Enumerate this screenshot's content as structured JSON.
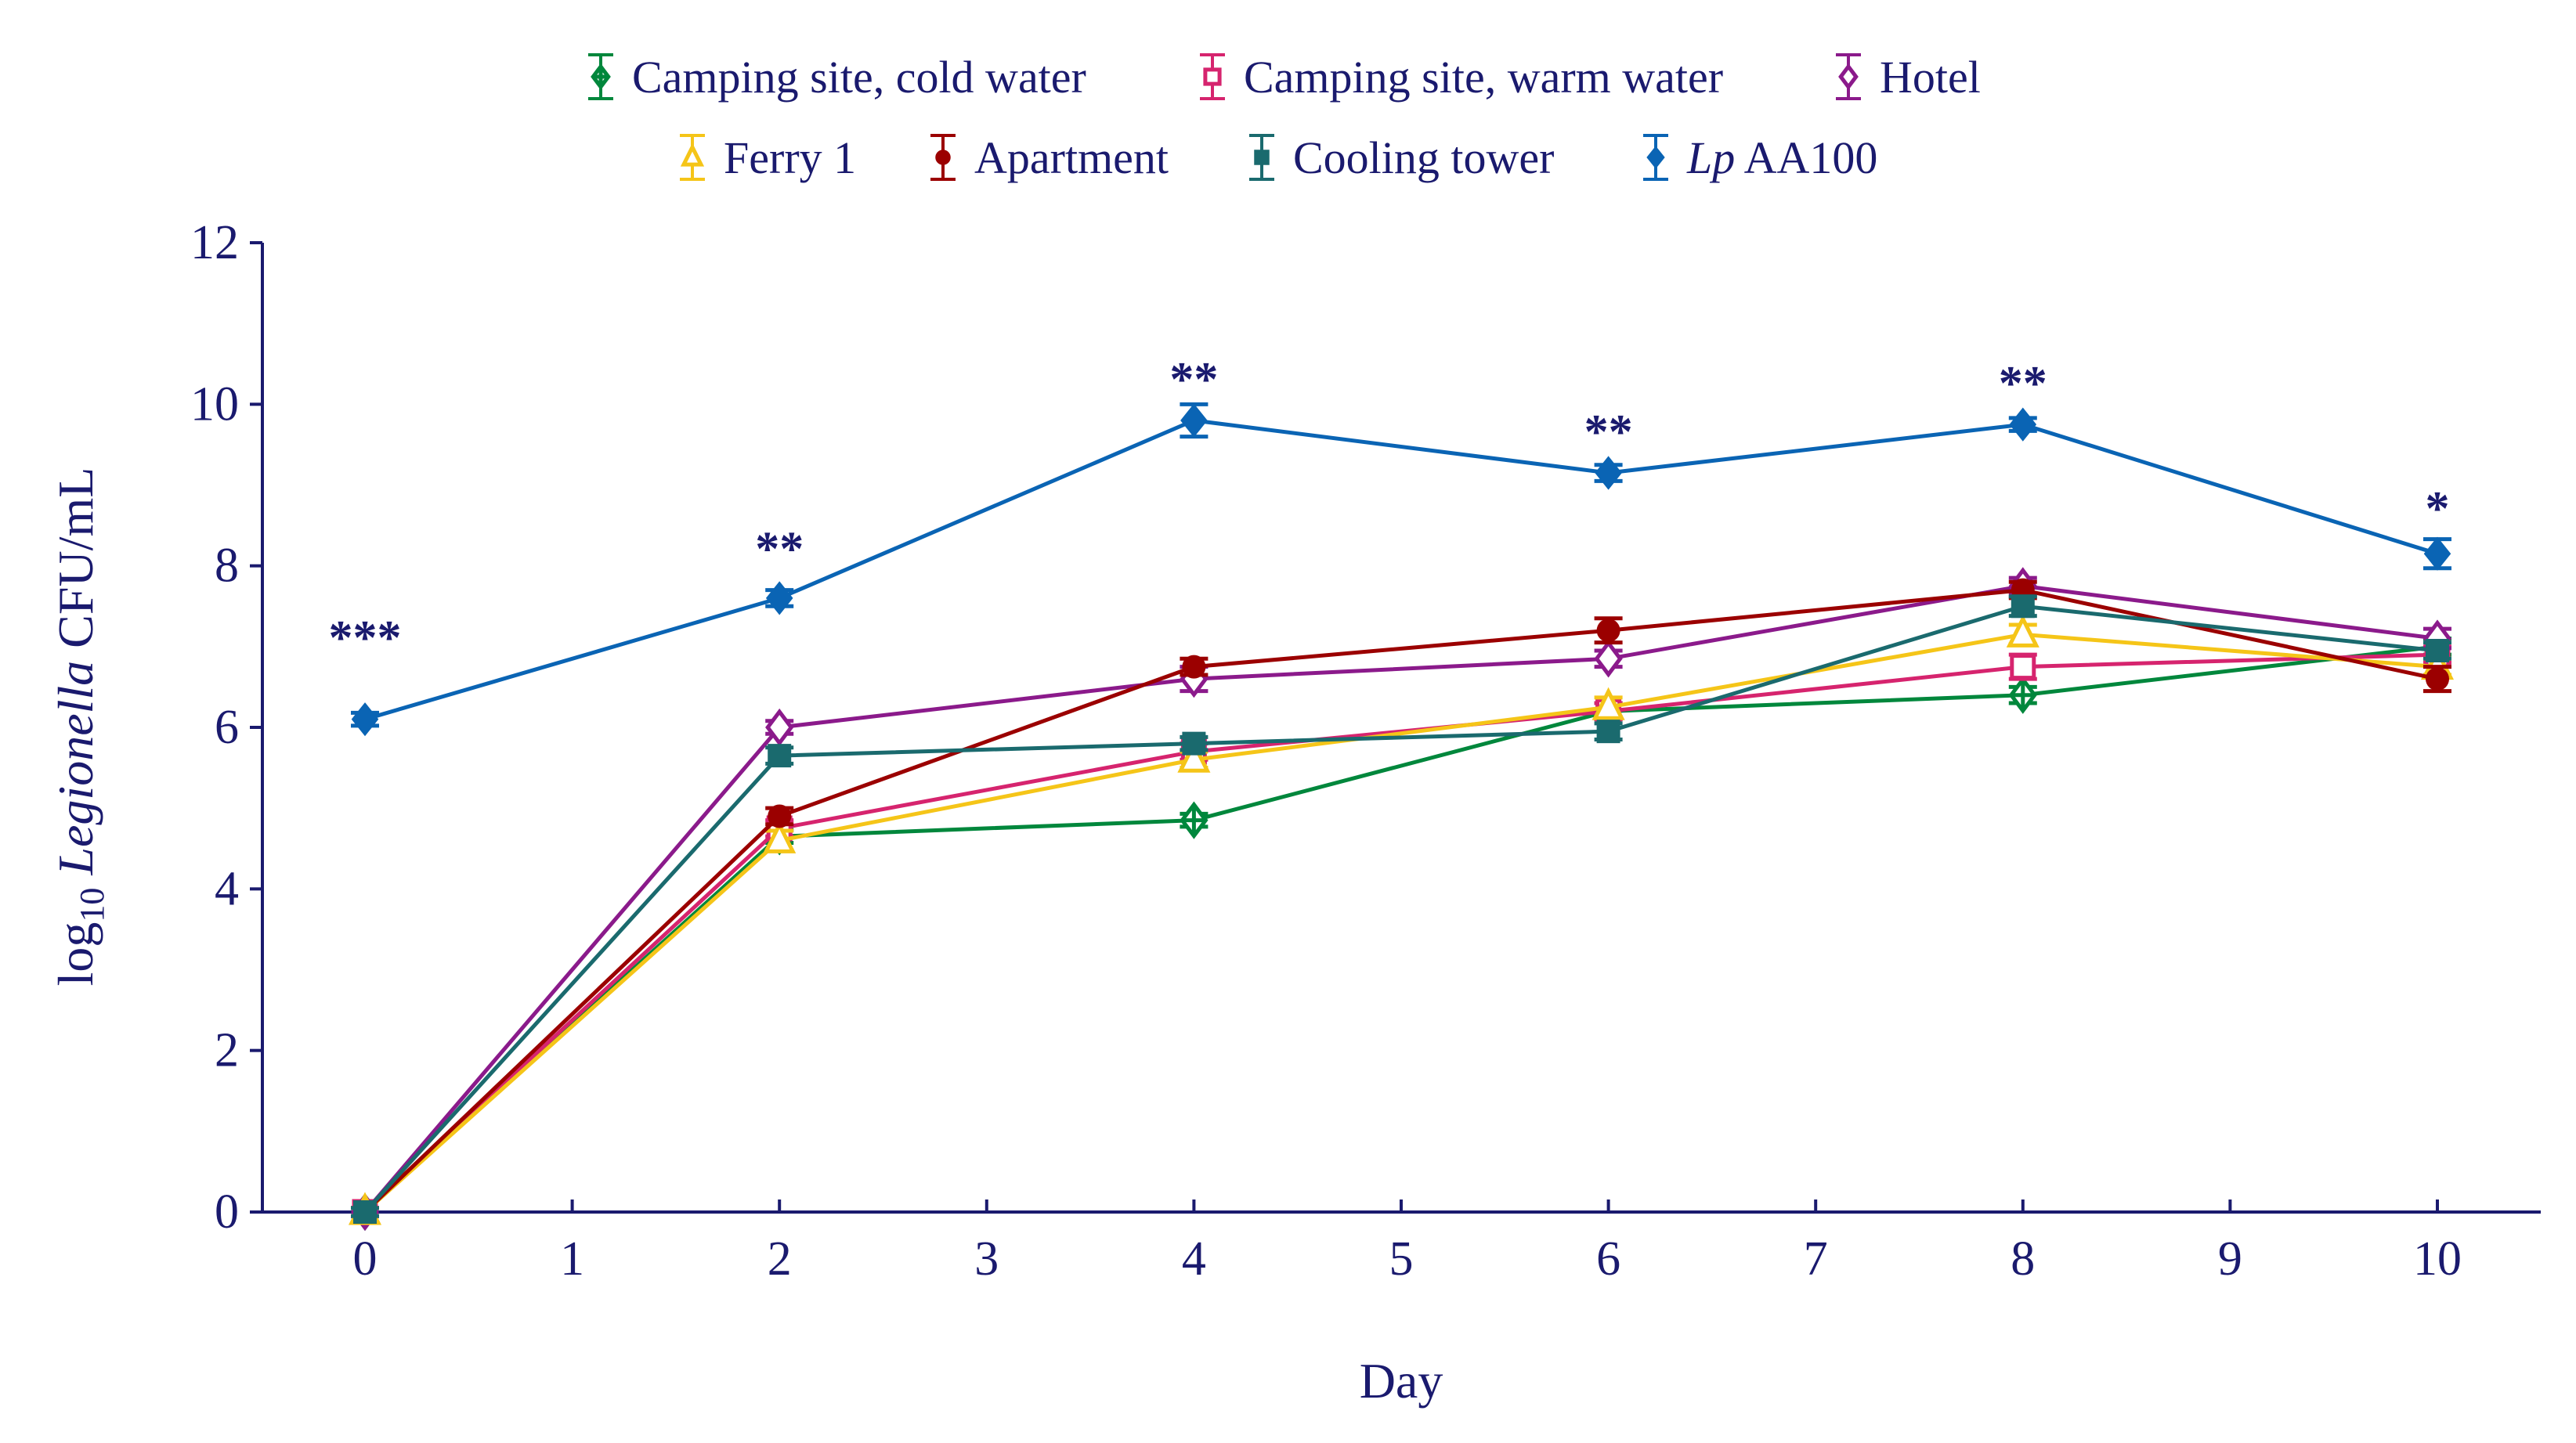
{
  "chart_data": {
    "type": "line",
    "xlabel": "Day",
    "ylabel": {
      "prefix": "log",
      "subscript": "10",
      "italic": "Legionella",
      "suffix": " CFU/mL"
    },
    "x": [
      0,
      2,
      4,
      6,
      8,
      10
    ],
    "xlim": [
      -0.5,
      10.5
    ],
    "ylim": [
      0,
      12
    ],
    "xticks": [
      "0",
      "1",
      "2",
      "3",
      "4",
      "5",
      "6",
      "7",
      "8",
      "9",
      "10"
    ],
    "yticks": [
      "0",
      "2",
      "4",
      "6",
      "8",
      "10",
      "12"
    ],
    "grid": false,
    "legend_position": "top",
    "series": [
      {
        "name": "Camping site, cold water",
        "color": "#00873c",
        "marker": "diamond-cross-open",
        "values": [
          0,
          4.65,
          4.85,
          6.2,
          6.4,
          7.0
        ],
        "err": [
          0.05,
          0.08,
          0.08,
          0.1,
          0.1,
          0.1
        ]
      },
      {
        "name": "Camping site, warm water",
        "color": "#d6246e",
        "marker": "square-open",
        "values": [
          0,
          4.75,
          5.7,
          6.2,
          6.75,
          6.9
        ],
        "err": [
          0.05,
          0.1,
          0.1,
          0.1,
          0.15,
          0.1
        ]
      },
      {
        "name": "Hotel",
        "color": "#8b1a8b",
        "marker": "diamond-open",
        "values": [
          0,
          6.0,
          6.6,
          6.85,
          7.75,
          7.1
        ],
        "err": [
          0.05,
          0.08,
          0.15,
          0.1,
          0.1,
          0.12
        ]
      },
      {
        "name": "Ferry 1",
        "color": "#f5c518",
        "marker": "triangle-open",
        "values": [
          0,
          4.6,
          5.6,
          6.25,
          7.15,
          6.75
        ],
        "err": [
          0.05,
          0.12,
          0.1,
          0.12,
          0.12,
          0.1
        ]
      },
      {
        "name": "Apartment",
        "color": "#9b0000",
        "marker": "circle",
        "values": [
          0,
          4.9,
          6.75,
          7.2,
          7.7,
          6.6
        ],
        "err": [
          0.05,
          0.1,
          0.1,
          0.15,
          0.1,
          0.15
        ]
      },
      {
        "name": "Cooling tower",
        "color": "#1a6a6e",
        "marker": "square",
        "values": [
          0,
          5.65,
          5.8,
          5.95,
          7.5,
          6.95
        ],
        "err": [
          0.05,
          0.1,
          0.08,
          0.1,
          0.12,
          0.1
        ]
      },
      {
        "name": "Lp AA100",
        "name_italic": "Lp",
        "name_rest": " AA100",
        "color": "#0a64b4",
        "marker": "diamond",
        "values": [
          6.1,
          7.6,
          9.8,
          9.15,
          9.75,
          8.15
        ],
        "err": [
          0.08,
          0.1,
          0.2,
          0.1,
          0.08,
          0.18
        ]
      }
    ],
    "annotations": [
      {
        "x": 0,
        "y": 7.2,
        "text": "***"
      },
      {
        "x": 2,
        "y": 8.3,
        "text": "**"
      },
      {
        "x": 4,
        "y": 10.4,
        "text": "**"
      },
      {
        "x": 6,
        "y": 9.75,
        "text": "**"
      },
      {
        "x": 8,
        "y": 10.35,
        "text": "**"
      },
      {
        "x": 10,
        "y": 8.8,
        "text": "*"
      }
    ]
  }
}
